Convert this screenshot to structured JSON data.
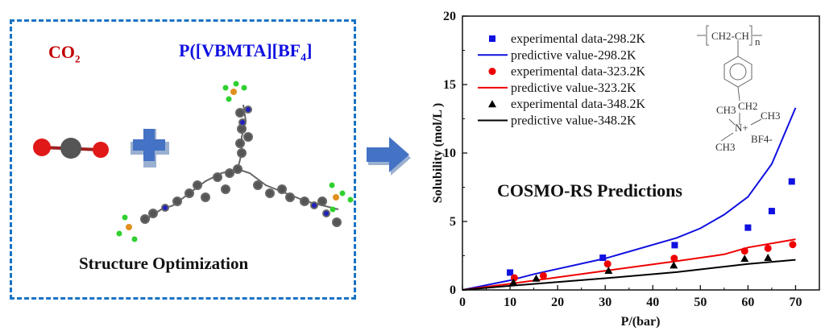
{
  "left_panel": {
    "co2_label": "CO",
    "co2_sub": "2",
    "polymer_label": "P([VBMTA][BF",
    "polymer_sub": "4",
    "polymer_close": "]",
    "caption": "Structure Optimization"
  },
  "colors": {
    "panel_border": "#1a73c4",
    "co2": "#c00000",
    "polymer": "#1010e0",
    "arrow": "#4472c4"
  },
  "icons": {
    "plus": "plus-icon",
    "arrow": "arrow-right-icon"
  },
  "inset_structure": {
    "repeat": "CH2-CH",
    "n": "n",
    "ch2": "CH2",
    "ch3_a": "CH3",
    "ch3_b": "CH3",
    "ch3_c": "CH3",
    "n_plus": "N+",
    "anion": "BF4-"
  },
  "chart_data": {
    "type": "scatter",
    "xlabel": "P/(bar)",
    "ylabel": "Solubility (mol/L )",
    "annotation": "COSMO-RS Predictions",
    "xlim": [
      0,
      75
    ],
    "ylim": [
      0,
      20
    ],
    "xticks": [
      0,
      10,
      20,
      30,
      40,
      50,
      60,
      70
    ],
    "yticks": [
      0,
      5,
      10,
      15,
      20
    ],
    "grid": false,
    "legend_position": "top-left",
    "series": [
      {
        "name": "experimental data-298.2K",
        "kind": "scatter",
        "marker": "square",
        "color": "#1010e0",
        "x": [
          10.0,
          29.5,
          44.6,
          60.0,
          65.0,
          69.2
        ],
        "y": [
          1.27,
          2.35,
          3.27,
          4.55,
          5.76,
          7.92
        ]
      },
      {
        "name": "predictive value-298.2K",
        "kind": "line",
        "color": "#1010e0",
        "x": [
          0,
          10,
          15,
          30,
          45,
          50,
          55,
          60,
          65,
          70
        ],
        "y": [
          0,
          0.7,
          1.15,
          2.3,
          3.8,
          4.5,
          5.5,
          6.8,
          9.2,
          13.3
        ]
      },
      {
        "name": "experimental data-323.2K",
        "kind": "scatter",
        "marker": "circle",
        "color": "#ee0000",
        "x": [
          10.9,
          17.0,
          30.5,
          44.5,
          59.3,
          64.2,
          69.4
        ],
        "y": [
          0.88,
          1.04,
          1.9,
          2.31,
          2.84,
          3.04,
          3.31
        ]
      },
      {
        "name": "predictive value-323.2K",
        "kind": "line",
        "color": "#ee0000",
        "x": [
          0,
          10,
          30,
          45,
          55,
          60,
          70
        ],
        "y": [
          0,
          0.45,
          1.4,
          2.1,
          2.6,
          3.1,
          3.7
        ]
      },
      {
        "name": "experimental data-348.2K",
        "kind": "scatter",
        "marker": "triangle",
        "color": "#000000",
        "x": [
          10.7,
          15.5,
          30.7,
          44.4,
          59.3,
          64.2
        ],
        "y": [
          0.55,
          0.84,
          1.41,
          1.8,
          2.29,
          2.35
        ]
      },
      {
        "name": "predictive value-348.2K",
        "kind": "line",
        "color": "#000000",
        "x": [
          0,
          10,
          30,
          45,
          50,
          60,
          70
        ],
        "y": [
          0,
          0.3,
          0.85,
          1.3,
          1.5,
          1.9,
          2.2
        ]
      }
    ]
  }
}
